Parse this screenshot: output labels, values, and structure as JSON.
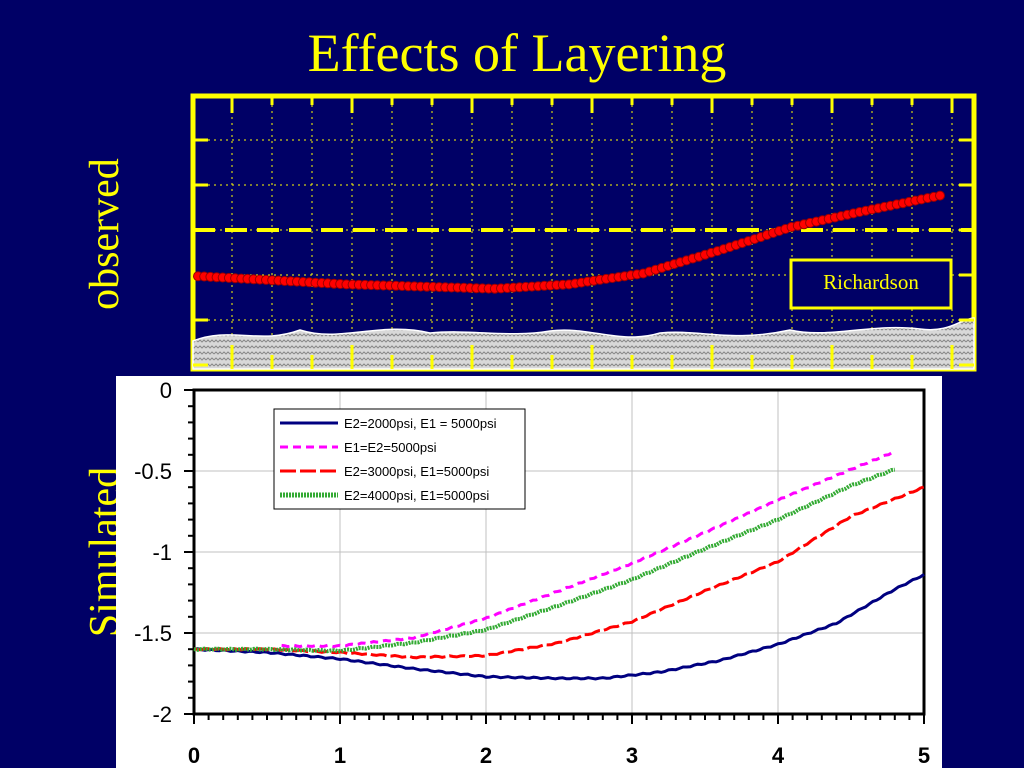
{
  "title": "Effects of Layering",
  "observed": {
    "side_label": "observed",
    "badge": "Richardson",
    "colors": {
      "frame": "#ffff00",
      "trace": "#ff0000",
      "background": "#000066"
    }
  },
  "simulated": {
    "side_label": "Simulated"
  },
  "chart_data": [
    {
      "type": "scatter",
      "title": "",
      "annotation": "Richardson",
      "color": "#ff0000",
      "x": [
        0.0,
        0.1,
        0.2,
        0.3,
        0.4,
        0.5,
        0.6,
        0.7,
        0.8,
        0.9,
        1.0
      ],
      "y": [
        0.34,
        0.325,
        0.31,
        0.302,
        0.294,
        0.31,
        0.35,
        0.432,
        0.52,
        0.58,
        0.635
      ],
      "note": "observed profile in relative units (no axis tick labels printed)"
    },
    {
      "type": "line",
      "title": "",
      "xlabel": "",
      "ylabel": "",
      "xlim": [
        0,
        5
      ],
      "ylim": [
        -2,
        0
      ],
      "xticks": [
        "0",
        "1",
        "2",
        "3",
        "4",
        "5"
      ],
      "yticks": [
        "0",
        "-0.5",
        "-1",
        "-1.5",
        "-2"
      ],
      "grid": true,
      "legend_position": "top-right",
      "series": [
        {
          "name": "E2=2000psi, E1 = 5000psi",
          "color": "#000080",
          "style": "solid",
          "x": [
            0,
            0.5,
            1.0,
            1.5,
            2.0,
            2.5,
            2.8,
            3.2,
            3.6,
            4.0,
            4.4,
            4.8,
            5.0
          ],
          "y": [
            -1.6,
            -1.62,
            -1.66,
            -1.72,
            -1.77,
            -1.78,
            -1.78,
            -1.74,
            -1.67,
            -1.57,
            -1.44,
            -1.23,
            -1.14
          ]
        },
        {
          "name": "E1=E2=5000psi",
          "color": "#ff00ff",
          "style": "dashed",
          "x": [
            0.6,
            1.0,
            1.5,
            2.0,
            2.5,
            3.0,
            3.5,
            4.0,
            4.5,
            4.8
          ],
          "y": [
            -1.58,
            -1.58,
            -1.53,
            -1.41,
            -1.24,
            -1.07,
            -0.88,
            -0.68,
            -0.49,
            -0.38
          ]
        },
        {
          "name": "E2=3000psi, E1=5000psi",
          "color": "#ff0000",
          "style": "long-dash",
          "x": [
            0,
            0.5,
            1.0,
            1.5,
            2.0,
            2.5,
            3.0,
            3.5,
            4.0,
            4.5,
            5.0
          ],
          "y": [
            -1.6,
            -1.6,
            -1.62,
            -1.65,
            -1.64,
            -1.56,
            -1.43,
            -1.24,
            -1.06,
            -0.78,
            -0.6
          ]
        },
        {
          "name": "E2=4000psi, E1=5000psi",
          "color": "#33aa33",
          "style": "hatched",
          "x": [
            0,
            0.5,
            1.0,
            1.5,
            2.0,
            2.5,
            3.0,
            3.5,
            4.0,
            4.5,
            4.8
          ],
          "y": [
            -1.6,
            -1.6,
            -1.61,
            -1.56,
            -1.48,
            -1.33,
            -1.17,
            -0.98,
            -0.8,
            -0.59,
            -0.49
          ]
        }
      ]
    }
  ]
}
